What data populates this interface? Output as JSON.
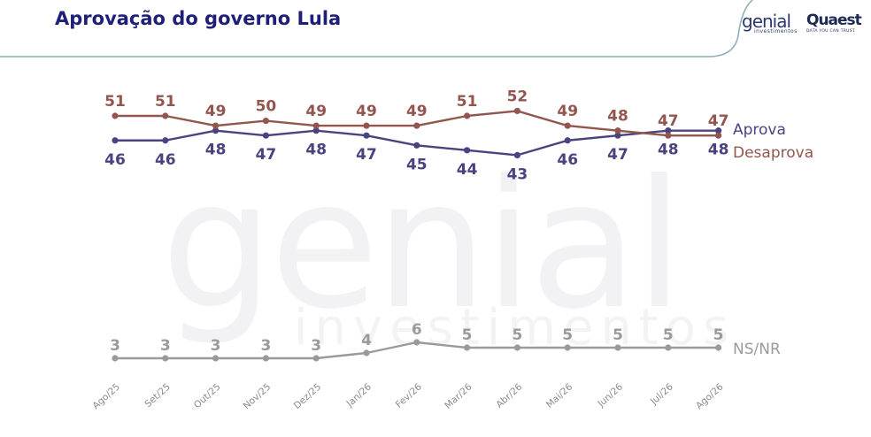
{
  "header": {
    "title": "Aprovação do governo Lula"
  },
  "logos": {
    "genial": "genial",
    "genial_sub": "investimentos",
    "quaest": "Quaest",
    "quaest_sub": "DATA YOU CAN TRUST"
  },
  "watermark": {
    "big": "genial",
    "small": "investimentos"
  },
  "colors": {
    "aprova": "#4a4380",
    "desaprova": "#93564f",
    "nsnr": "#9a9a9a",
    "title": "#1f1f78",
    "rule": "#8fb0b8"
  },
  "chart_data": {
    "type": "line",
    "categories": [
      "Ago/25",
      "Set/25",
      "Out/25",
      "Nov/25",
      "Dez/25",
      "Jan/26",
      "Fev/26",
      "Mar/26",
      "Abr/26",
      "Mai/26",
      "Jun/26",
      "Jul/26",
      "Ago/26"
    ],
    "series": [
      {
        "name": "Aprova",
        "color": "#4a4380",
        "values": [
          46,
          46,
          48,
          47,
          48,
          47,
          45,
          44,
          43,
          46,
          47,
          48,
          48
        ]
      },
      {
        "name": "Desaprova",
        "color": "#93564f",
        "values": [
          51,
          51,
          49,
          50,
          49,
          49,
          49,
          51,
          52,
          49,
          48,
          47,
          47
        ]
      },
      {
        "name": "NS/NR",
        "color": "#9a9a9a",
        "values": [
          3,
          3,
          3,
          3,
          3,
          4,
          6,
          5,
          5,
          5,
          5,
          5,
          5
        ]
      }
    ],
    "legend": "right-end-of-lines",
    "grid": false
  }
}
